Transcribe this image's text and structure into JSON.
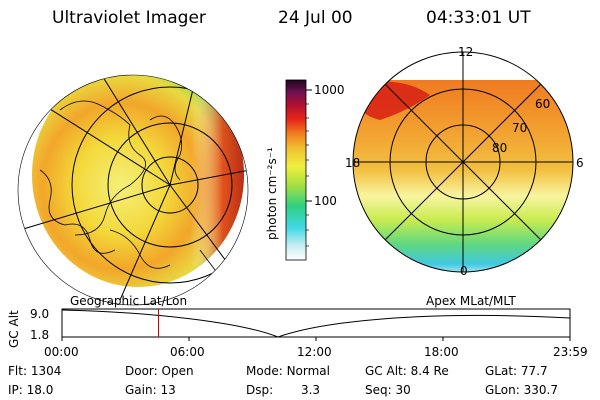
{
  "header": {
    "instrument": "Ultraviolet Imager",
    "date": "24 Jul 00",
    "time": "04:33:01 UT"
  },
  "colorbar": {
    "unit_label": "photon cm⁻²s⁻¹",
    "ticks": [
      "1000",
      "100"
    ]
  },
  "left_map": {
    "caption": "Geographic Lat/Lon"
  },
  "right_map": {
    "caption": "Apex MLat/MLT",
    "mlt_labels": [
      "12",
      "18",
      "6",
      "0"
    ],
    "mlat_labels": [
      "60",
      "70",
      "80"
    ]
  },
  "altitude_plot": {
    "ylabel": "GC Alt",
    "yticks": [
      "9.0",
      "1.8"
    ],
    "xticks": [
      "00:00",
      "06:00",
      "12:00",
      "18:00",
      "23:59"
    ],
    "current_time_fraction": 0.19
  },
  "footer": {
    "rows": [
      [
        {
          "label": "Flt:",
          "value": "1304"
        },
        {
          "label": "Door:",
          "value": "Open"
        },
        {
          "label": "Mode:",
          "value": "Normal"
        },
        {
          "label": "GC Alt:",
          "value": "8.4 Re"
        },
        {
          "label": "GLat:",
          "value": "77.7"
        }
      ],
      [
        {
          "label": "IP:",
          "value": "18.0"
        },
        {
          "label": "Gain:",
          "value": "13"
        },
        {
          "label": "Dsp:",
          "value": "3.3"
        },
        {
          "label": "Seq:",
          "value": "30"
        },
        {
          "label": "GLon:",
          "value": "330.7"
        }
      ]
    ]
  },
  "colors": {
    "plot_line": "#000000",
    "time_marker": "#cc0000"
  }
}
